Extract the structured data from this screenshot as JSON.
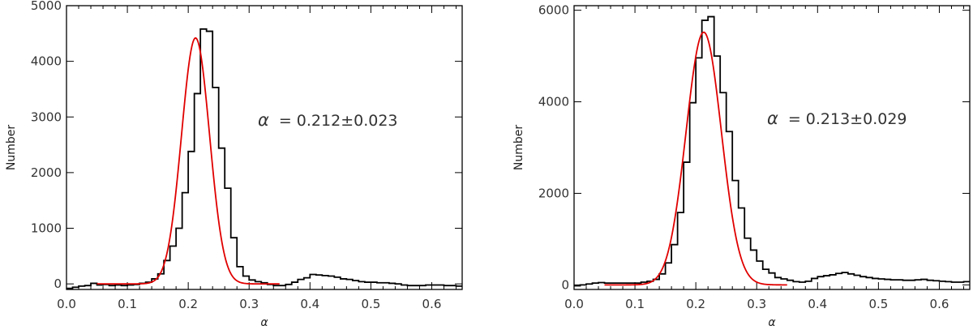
{
  "chart_data": [
    {
      "type": "histogram",
      "xlabel": "α",
      "ylabel": "Number",
      "xlim": [
        0.0,
        0.65
      ],
      "ylim": [
        -100,
        5000
      ],
      "xticks": [
        "0.0",
        "0.1",
        "0.2",
        "0.3",
        "0.4",
        "0.5",
        "0.6"
      ],
      "yticks": [
        "0",
        "1000",
        "2000",
        "3000",
        "4000",
        "5000"
      ],
      "annotation": {
        "symbol": "α",
        "text": "=  0.212±0.023"
      },
      "bin_width": 0.01,
      "bin_start": 0.0,
      "values": [
        -80,
        -60,
        -40,
        -30,
        10,
        -20,
        -10,
        -30,
        -20,
        -30,
        -20,
        -10,
        10,
        30,
        90,
        180,
        420,
        680,
        1000,
        1640,
        2380,
        3420,
        4580,
        4540,
        3530,
        2440,
        1720,
        830,
        310,
        140,
        70,
        40,
        20,
        -10,
        -30,
        -30,
        -10,
        30,
        80,
        110,
        170,
        160,
        150,
        140,
        120,
        90,
        80,
        60,
        40,
        30,
        30,
        20,
        20,
        10,
        0,
        -20,
        -30,
        -30,
        -30,
        -20,
        -20,
        -20,
        -30,
        -30,
        -40
      ],
      "fit": {
        "center": 0.212,
        "sigma": 0.023,
        "amplitude": 4420,
        "x_range": [
          0.05,
          0.35
        ]
      }
    },
    {
      "type": "histogram",
      "xlabel": "α",
      "ylabel": "Number",
      "xlim": [
        0.0,
        0.65
      ],
      "ylim": [
        -100,
        6100
      ],
      "xticks": [
        "0.0",
        "0.1",
        "0.2",
        "0.3",
        "0.4",
        "0.5",
        "0.6"
      ],
      "yticks": [
        "0",
        "2000",
        "4000",
        "6000"
      ],
      "annotation": {
        "symbol": "α",
        "text": "=  0.213±0.029"
      },
      "bin_width": 0.01,
      "bin_start": 0.0,
      "values": [
        -20,
        0,
        20,
        40,
        50,
        40,
        40,
        40,
        40,
        40,
        40,
        60,
        80,
        120,
        240,
        480,
        880,
        1580,
        2680,
        3980,
        4960,
        5780,
        5860,
        5000,
        4200,
        3350,
        2280,
        1680,
        1020,
        760,
        520,
        340,
        260,
        160,
        130,
        100,
        70,
        60,
        80,
        140,
        180,
        200,
        220,
        250,
        270,
        240,
        210,
        180,
        160,
        140,
        130,
        120,
        110,
        110,
        100,
        100,
        110,
        120,
        100,
        90,
        80,
        70,
        60,
        60,
        70
      ],
      "fit": {
        "center": 0.213,
        "sigma": 0.029,
        "amplitude": 5520,
        "x_range": [
          0.05,
          0.35
        ]
      }
    }
  ]
}
